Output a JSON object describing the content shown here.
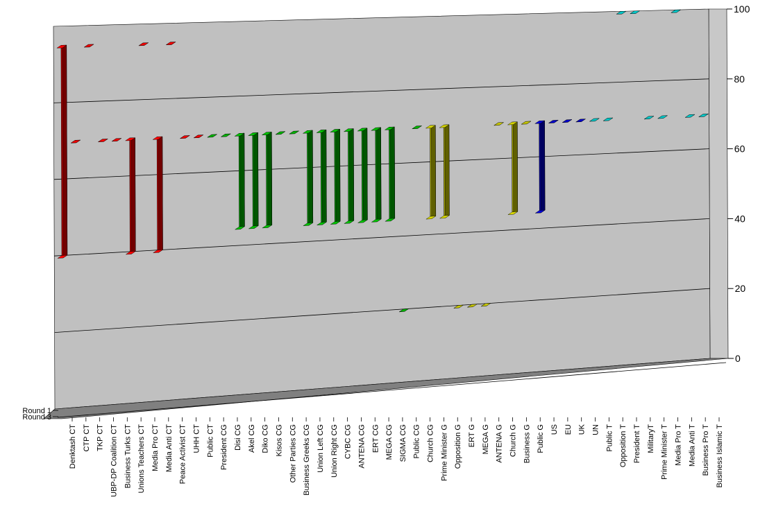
{
  "chart_data": {
    "type": "bar",
    "title": "",
    "xlabel": "",
    "ylabel": "",
    "ylim": [
      0,
      100
    ],
    "yticks": [
      0,
      20,
      40,
      60,
      80,
      100
    ],
    "grid": true,
    "depth_series_labels": [
      "Round 1",
      "Round 3"
    ],
    "categories": [
      "Denktash CT",
      "CTP CT",
      "TKP CT",
      "UBP-DP Coalition CT",
      "Business Turks CT",
      "Unions Teachers CT",
      "Media Pro CT",
      "Media  Anti CT",
      "Peace Activist CT",
      "UHH CT",
      "Public CT",
      "President CG",
      "Disi CG",
      "Akel CG",
      "Diko CG",
      "Kisos CG",
      "Other Parties CG",
      "Business Greeks CG",
      "Union Left CG",
      "Union Right CG",
      "CYBC CG",
      "ANTENA CG",
      "ERT CG",
      "MEGA CG",
      "SIGMA CG",
      "Public CG",
      "Church CG",
      "Prime Minister G",
      "Opposition G",
      "ERT G",
      "MEGA G",
      "ANTENA G",
      "Church G",
      "Business G",
      "Public G",
      "US",
      "EU",
      "UK",
      "UN",
      "Public T",
      "Opposition T",
      "President T",
      "MilitaryT",
      "Prime Minister T",
      "Media Pro T",
      "Media  Anti T",
      "Business Pro T",
      "Business Islamic T"
    ],
    "series": [
      {
        "name": "Round 1",
        "values": [
          95,
          70,
          95,
          70,
          70,
          70,
          95,
          70,
          95,
          70,
          70,
          70,
          70,
          70,
          70,
          70,
          70,
          70,
          70,
          70,
          70,
          70,
          70,
          70,
          70,
          20,
          70,
          70,
          70,
          20,
          20,
          20,
          70,
          70,
          70,
          70,
          70,
          70,
          70,
          70,
          70,
          100,
          100,
          70,
          70,
          100,
          70,
          70
        ]
      },
      {
        "name": "Round 3",
        "values": [
          40,
          70,
          95,
          70,
          70,
          40,
          95,
          40,
          95,
          70,
          70,
          70,
          70,
          45,
          45,
          45,
          70,
          70,
          45,
          45,
          45,
          45,
          45,
          45,
          45,
          20,
          70,
          45,
          45,
          20,
          20,
          20,
          70,
          45,
          70,
          45,
          70,
          70,
          70,
          70,
          70,
          100,
          100,
          70,
          70,
          100,
          70,
          70
        ]
      }
    ],
    "category_colors": [
      "#c00000",
      "#c00000",
      "#c00000",
      "#c00000",
      "#c00000",
      "#c00000",
      "#c00000",
      "#c00000",
      "#c00000",
      "#c00000",
      "#c00000",
      "#009000",
      "#009000",
      "#009000",
      "#009000",
      "#009000",
      "#009000",
      "#009000",
      "#009000",
      "#009000",
      "#009000",
      "#009000",
      "#009000",
      "#009000",
      "#009000",
      "#009000",
      "#009000",
      "#a0a000",
      "#a0a000",
      "#a0a000",
      "#a0a000",
      "#a0a000",
      "#a0a000",
      "#a0a000",
      "#a0a000",
      "#0000a0",
      "#0000a0",
      "#0000a0",
      "#0000a0",
      "#00a0a0",
      "#00a0a0",
      "#00a0a0",
      "#00a0a0",
      "#00a0a0",
      "#00a0a0",
      "#00a0a0",
      "#00a0a0",
      "#00a0a0"
    ],
    "colors": {
      "wall": "#c0c0c0",
      "floor": "#808080",
      "axis": "#000000",
      "grid": "#000000"
    }
  }
}
